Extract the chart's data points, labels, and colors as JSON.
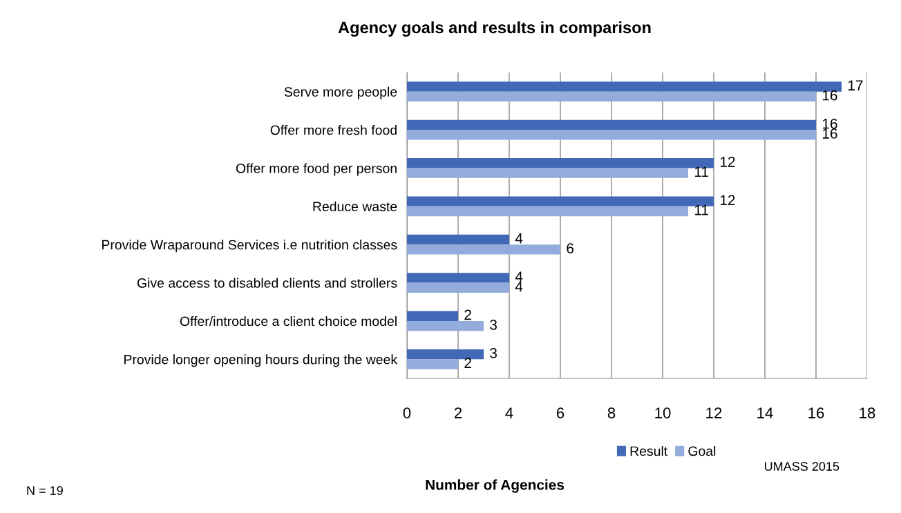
{
  "chart_data": {
    "type": "bar",
    "orientation": "horizontal",
    "title": "Agency goals and results in comparison",
    "xlabel": "Number of Agencies",
    "categories": [
      "Serve more people",
      "Offer more fresh food",
      "Offer more food per person",
      "Reduce waste",
      "Provide Wraparound Services i.e nutrition classes",
      "Give access to disabled clients and strollers",
      "Offer/introduce a client choice model",
      "Provide longer opening hours during the week"
    ],
    "series": [
      {
        "name": "Result",
        "color": "#4169b8",
        "values": [
          17,
          16,
          12,
          12,
          4,
          4,
          2,
          3
        ]
      },
      {
        "name": "Goal",
        "color": "#94acdb",
        "values": [
          16,
          16,
          11,
          11,
          6,
          4,
          3,
          2
        ]
      }
    ],
    "xlim": [
      0,
      18
    ],
    "xticks": [
      0,
      2,
      4,
      6,
      8,
      10,
      12,
      14,
      16,
      18
    ],
    "grid": "x",
    "legend": "bottom",
    "data_labels": true,
    "annotations": [
      "N = 19",
      "UMASS 2015"
    ]
  }
}
